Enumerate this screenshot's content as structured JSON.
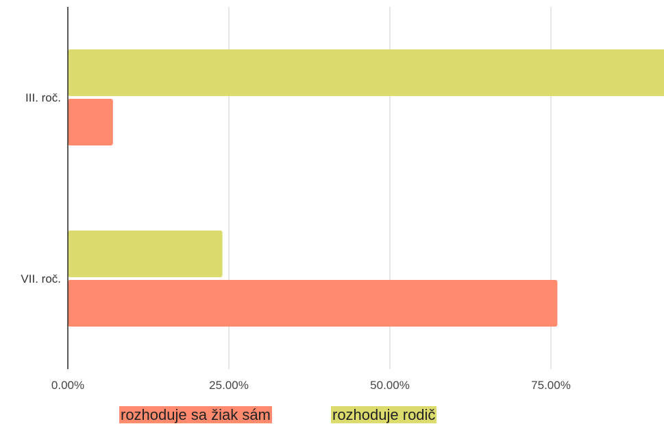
{
  "chart_data": {
    "type": "bar",
    "orientation": "horizontal",
    "categories": [
      "III. roč.",
      "VII. roč."
    ],
    "series": [
      {
        "name": "rozhoduje rodič",
        "color": "#dcdc6e",
        "values": [
          93,
          24
        ]
      },
      {
        "name": "rozhoduje sa žiak sám",
        "color": "#ff8a6d",
        "values": [
          7,
          76
        ]
      }
    ],
    "x_ticks": [
      "0.00%",
      "25.00%",
      "50.00%",
      "75.00%"
    ],
    "xlim": [
      0,
      100
    ],
    "grid": true,
    "legend_position": "bottom",
    "legend": [
      {
        "label": "rozhoduje sa žiak sám",
        "color": "#ff8a6d"
      },
      {
        "label": "rozhoduje rodič",
        "color": "#dcdc6e"
      }
    ],
    "title": "",
    "xlabel": "",
    "ylabel": ""
  }
}
